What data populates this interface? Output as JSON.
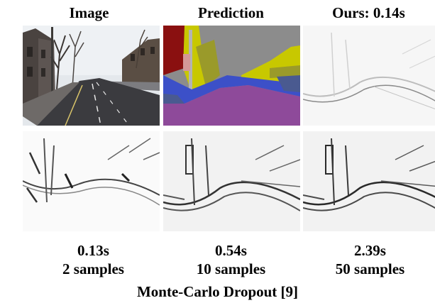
{
  "headers": {
    "image": "Image",
    "prediction": "Prediction",
    "ours": "Ours: 0.14s"
  },
  "bottom_captions": [
    {
      "time": "0.13s",
      "samples": "2 samples"
    },
    {
      "time": "0.54s",
      "samples": "10 samples"
    },
    {
      "time": "2.39s",
      "samples": "50 samples"
    }
  ],
  "footer": "Monte-Carlo Dropout [9]",
  "segmentation_colors": {
    "sky": "#8c8c8c",
    "building": "#c8c800",
    "tree": "#9a9a2a",
    "pole": "#b3b3b3",
    "wall": "#8a1010",
    "sidewalk": "#3c50c8",
    "road": "#8e4a9a",
    "person": "#d49898"
  }
}
